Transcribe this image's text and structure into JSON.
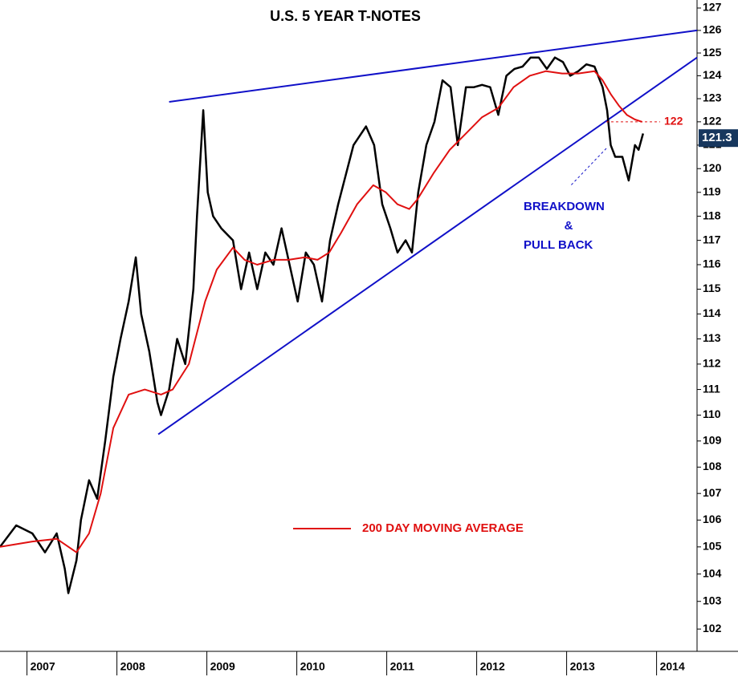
{
  "chart_data": {
    "type": "line",
    "title": "U.S. 5 YEAR T-NOTES",
    "log_y": true,
    "xlim": [
      2006.7,
      2014.45
    ],
    "xticks": [
      2007,
      2008,
      2009,
      2010,
      2011,
      2012,
      2013,
      2014
    ],
    "ylim": [
      101.2,
      127.36
    ],
    "yticks": [
      102,
      103,
      104,
      105,
      106,
      107,
      108,
      109,
      110,
      111,
      112,
      113,
      114,
      115,
      116,
      117,
      118,
      119,
      120,
      121,
      122,
      123,
      124,
      125,
      126,
      127
    ],
    "series": [
      {
        "color": "#000000",
        "x": [
          2006.7,
          2006.88,
          2007.06,
          2007.2,
          2007.33,
          2007.42,
          2007.46,
          2007.55,
          2007.6,
          2007.69,
          2007.78,
          2007.87,
          2007.96,
          2008.04,
          2008.13,
          2008.21,
          2008.27,
          2008.36,
          2008.45,
          2008.49,
          2008.58,
          2008.67,
          2008.76,
          2008.85,
          2008.89,
          2008.96,
          2009.01,
          2009.07,
          2009.16,
          2009.29,
          2009.38,
          2009.47,
          2009.56,
          2009.65,
          2009.74,
          2009.83,
          2009.92,
          2010.01,
          2010.1,
          2010.19,
          2010.28,
          2010.37,
          2010.46,
          2010.63,
          2010.77,
          2010.86,
          2010.95,
          2011.04,
          2011.12,
          2011.21,
          2011.28,
          2011.35,
          2011.44,
          2011.53,
          2011.62,
          2011.71,
          2011.79,
          2011.88,
          2011.97,
          2012.06,
          2012.15,
          2012.24,
          2012.33,
          2012.42,
          2012.51,
          2012.6,
          2012.69,
          2012.78,
          2012.87,
          2012.96,
          2013.04,
          2013.13,
          2013.22,
          2013.31,
          2013.4,
          2013.45,
          2013.49,
          2013.54,
          2013.62,
          2013.69,
          2013.76,
          2013.8,
          2013.85
        ],
        "values": [
          105,
          105.8,
          105.5,
          104.8,
          105.5,
          104.2,
          103.3,
          104.5,
          106,
          107.5,
          106.8,
          109,
          111.5,
          113,
          114.5,
          116.3,
          114,
          112.5,
          110.5,
          110,
          111,
          113,
          112,
          115,
          118,
          122.5,
          119,
          118,
          117.5,
          117,
          115,
          116.5,
          115,
          116.5,
          116,
          117.5,
          116,
          114.5,
          116.5,
          116,
          114.5,
          117,
          118.5,
          121,
          121.8,
          121,
          118.5,
          117.5,
          116.5,
          117,
          116.5,
          119,
          121,
          122,
          123.8,
          123.5,
          121,
          123.5,
          123.5,
          123.6,
          123.5,
          122.3,
          124,
          124.3,
          124.4,
          124.8,
          124.8,
          124.3,
          124.8,
          124.6,
          124,
          124.2,
          124.5,
          124.4,
          123.5,
          122.5,
          121,
          120.5,
          120.5,
          119.5,
          121,
          120.8,
          121.5
        ]
      },
      {
        "name": "200 DAY MOVING AVERAGE",
        "color": "#e01010",
        "x": [
          2006.7,
          2007.06,
          2007.33,
          2007.55,
          2007.69,
          2007.82,
          2007.96,
          2008.13,
          2008.31,
          2008.49,
          2008.62,
          2008.8,
          2008.98,
          2009.11,
          2009.29,
          2009.42,
          2009.56,
          2009.74,
          2009.91,
          2010.09,
          2010.23,
          2010.36,
          2010.49,
          2010.67,
          2010.85,
          2010.99,
          2011.12,
          2011.25,
          2011.34,
          2011.52,
          2011.7,
          2011.88,
          2012.06,
          2012.24,
          2012.41,
          2012.59,
          2012.77,
          2012.95,
          2013.13,
          2013.31,
          2013.4,
          2013.49,
          2013.58,
          2013.67,
          2013.76,
          2013.84
        ],
        "values": [
          105,
          105.2,
          105.3,
          104.8,
          105.5,
          107,
          109.5,
          110.8,
          111,
          110.8,
          111,
          112,
          114.5,
          115.8,
          116.7,
          116.2,
          116,
          116.2,
          116.2,
          116.3,
          116.2,
          116.5,
          117.3,
          118.5,
          119.3,
          119,
          118.5,
          118.3,
          118.7,
          119.8,
          120.8,
          121.5,
          122.2,
          122.6,
          123.5,
          124,
          124.2,
          124.1,
          124.1,
          124.2,
          123.8,
          123.2,
          122.7,
          122.3,
          122.1,
          122
        ]
      }
    ],
    "trendlines": [
      {
        "color": "#1010c8",
        "x": [
          2008.58,
          2014.45
        ],
        "y": [
          122.86,
          126.0
        ]
      },
      {
        "color": "#1010c8",
        "x": [
          2008.46,
          2014.45
        ],
        "y": [
          109.26,
          124.8
        ]
      }
    ],
    "level": {
      "value": 122,
      "color": "#e01010"
    },
    "last_price": 121.3,
    "annotation": [
      "BREAKDOWN",
      "&",
      "PULL BACK"
    ]
  }
}
